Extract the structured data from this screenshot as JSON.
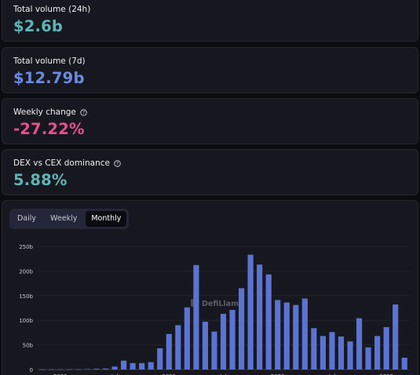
{
  "stats": [
    {
      "label": "Total volume (24h)",
      "value": "$2.6b",
      "color": "#5fb4b7",
      "help": false
    },
    {
      "label": "Total volume (7d)",
      "value": "$12.79b",
      "color": "#6a8be4",
      "help": false
    },
    {
      "label": "Weekly change",
      "value": "-27.22%",
      "color": "#e8508a",
      "help": true
    },
    {
      "label": "DEX vs CEX dominance",
      "value": "5.88%",
      "color": "#5fb4b7",
      "help": true
    }
  ],
  "tabs": [
    {
      "label": "Daily",
      "active": false
    },
    {
      "label": "Weekly",
      "active": false
    },
    {
      "label": "Monthly",
      "active": true
    }
  ],
  "watermark": "DefiLlama",
  "chart_data": {
    "type": "bar",
    "ylim": [
      0,
      250
    ],
    "yticks": [
      "0",
      "50b",
      "100b",
      "150b",
      "200b",
      "250b"
    ],
    "xtick_labels": [
      "2020",
      "Jul",
      "2021",
      "Jul",
      "2022",
      "Jul",
      "2023"
    ],
    "bar_color": "#5b73d2",
    "series": [
      {
        "values": [
          0.2,
          0.3,
          0.3,
          0.4,
          0.5,
          0.8,
          1.5,
          2,
          6,
          18,
          13,
          13,
          15,
          43,
          72,
          90,
          126,
          212,
          97,
          77,
          113,
          121,
          165,
          233,
          213,
          193,
          141,
          136,
          131,
          144,
          84,
          68,
          76,
          67,
          57,
          104,
          45,
          68,
          86,
          132,
          24
        ]
      }
    ]
  }
}
